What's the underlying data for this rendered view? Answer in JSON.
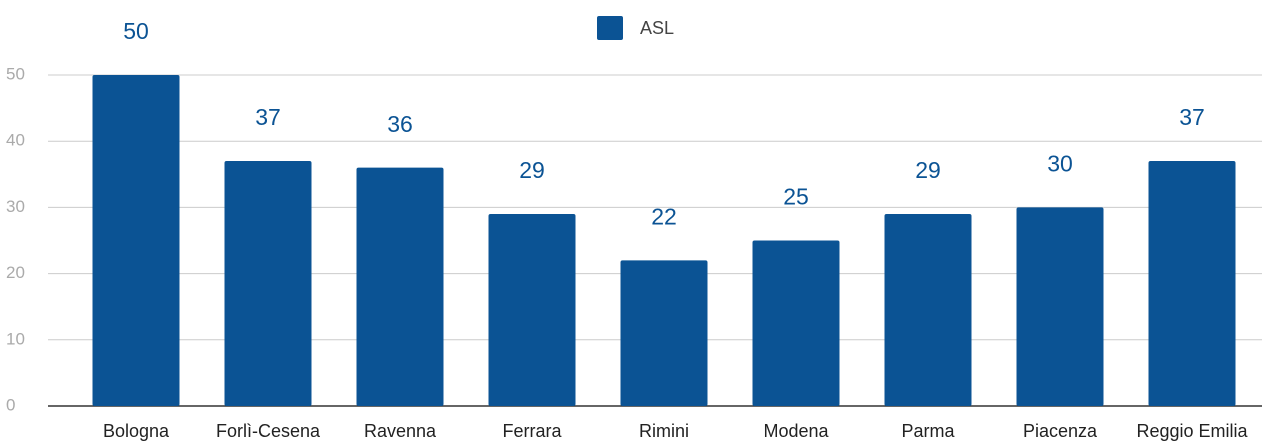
{
  "chart_data": {
    "type": "bar",
    "categories": [
      "Bologna",
      "Forlì-Cesena",
      "Ravenna",
      "Ferrara",
      "Rimini",
      "Modena",
      "Parma",
      "Piacenza",
      "Reggio Emilia"
    ],
    "series": [
      {
        "name": "ASL",
        "color": "#0b5394",
        "values": [
          50,
          37,
          36,
          29,
          22,
          25,
          29,
          30,
          37
        ]
      }
    ],
    "ylim": [
      0,
      50
    ],
    "yticks": [
      0,
      10,
      20,
      30,
      40,
      50
    ],
    "grid": true,
    "legend": "top"
  }
}
